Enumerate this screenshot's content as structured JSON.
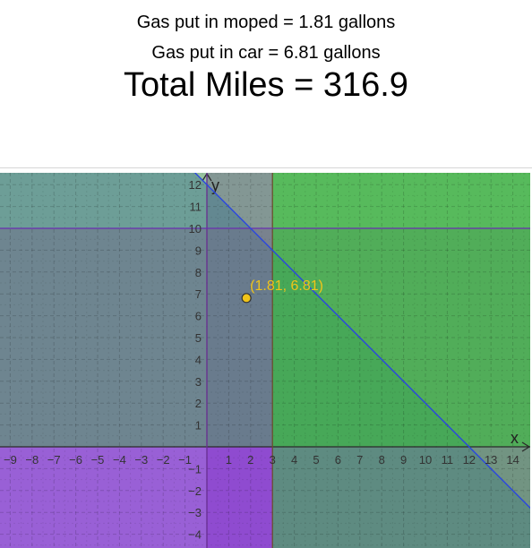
{
  "header": {
    "moped_line": "Gas put in moped = 1.81 gallons",
    "car_line": "Gas put in car = 6.81 gallons",
    "total_line": "Total Miles = 316.9"
  },
  "chart_data": {
    "type": "scatter",
    "xlabel": "x",
    "ylabel": "y",
    "xlim": [
      -9.4,
      15.1
    ],
    "ylim": [
      -4.5,
      12.4
    ],
    "xticks": [
      -9,
      -8,
      -7,
      -6,
      -5,
      -4,
      -3,
      -2,
      -1,
      1,
      2,
      3,
      4,
      5,
      6,
      7,
      8,
      9,
      10,
      11,
      12,
      13,
      14
    ],
    "yticks": [
      -4,
      -3,
      -2,
      -1,
      1,
      2,
      3,
      4,
      5,
      6,
      7,
      8,
      9,
      10,
      11,
      12
    ],
    "grid": true,
    "regions": [
      {
        "name": "x ≥ 0",
        "color": "#9b30c8"
      },
      {
        "name": "x + y ≤ 12",
        "color": "#3050d8"
      },
      {
        "name": "y ≤ 10",
        "color": "#9b30c8"
      },
      {
        "name": "x ≥ 3",
        "color": "#2fc62f"
      },
      {
        "name": "y ≥ 0",
        "color": "#2fc62f"
      },
      {
        "name": "x ≤ 3",
        "color": "#9b30c8"
      }
    ],
    "boundary_line": {
      "x1": 0,
      "y1": 12,
      "x2": 12,
      "y2": 0,
      "color": "#2a46e0"
    },
    "point": {
      "x": 1.81,
      "y": 6.81,
      "label": "(1.81, 6.81)",
      "color": "#f0c419"
    }
  }
}
